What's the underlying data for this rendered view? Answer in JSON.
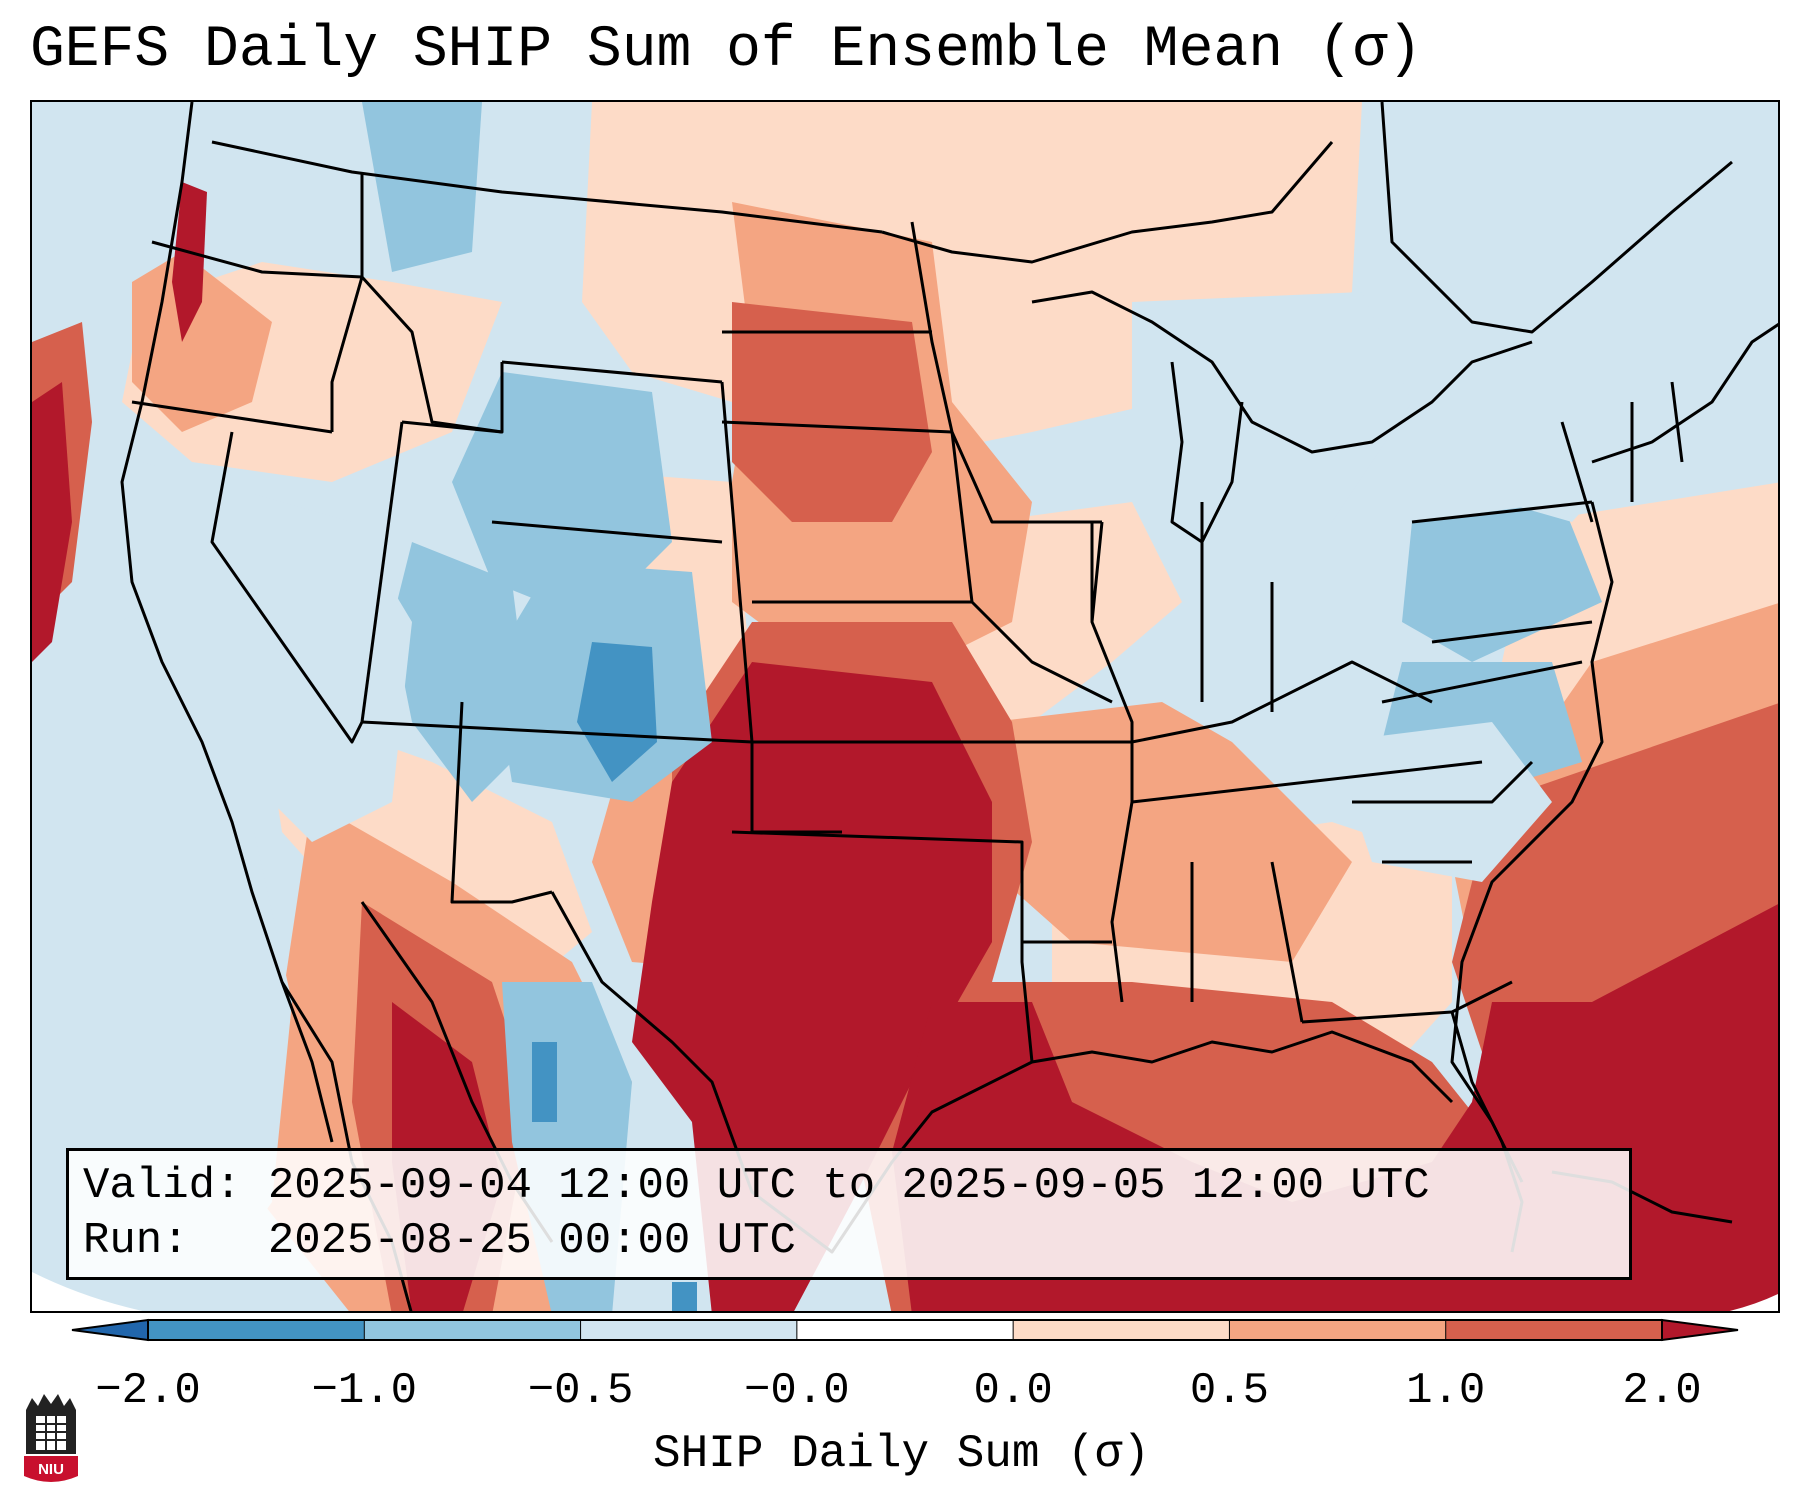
{
  "title": "GEFS Daily SHIP Sum of Ensemble Mean (σ)",
  "info": {
    "valid_label": "Valid:",
    "valid_value": "2025-09-04 12:00 UTC to 2025-09-05 12:00 UTC",
    "run_label": "Run:",
    "run_value": "2025-08-25 00:00 UTC"
  },
  "colorbar": {
    "label": "SHIP Daily Sum (σ)",
    "ticks": [
      "−2.0",
      "−1.0",
      "−0.5",
      "−0.0",
      "0.0",
      "0.5",
      "1.0",
      "2.0"
    ],
    "colors": [
      "#2166ac",
      "#4393c3",
      "#92c5de",
      "#d1e5f0",
      "#ffffff",
      "#fddbc7",
      "#f4a582",
      "#d6604d",
      "#b2182b"
    ]
  },
  "map": {
    "region": "Contiguous United States",
    "background_color": "#d1e5f0",
    "warm_color": "#b2182b",
    "cool_color": "#4393c3"
  },
  "logo": {
    "text": "NIU"
  }
}
